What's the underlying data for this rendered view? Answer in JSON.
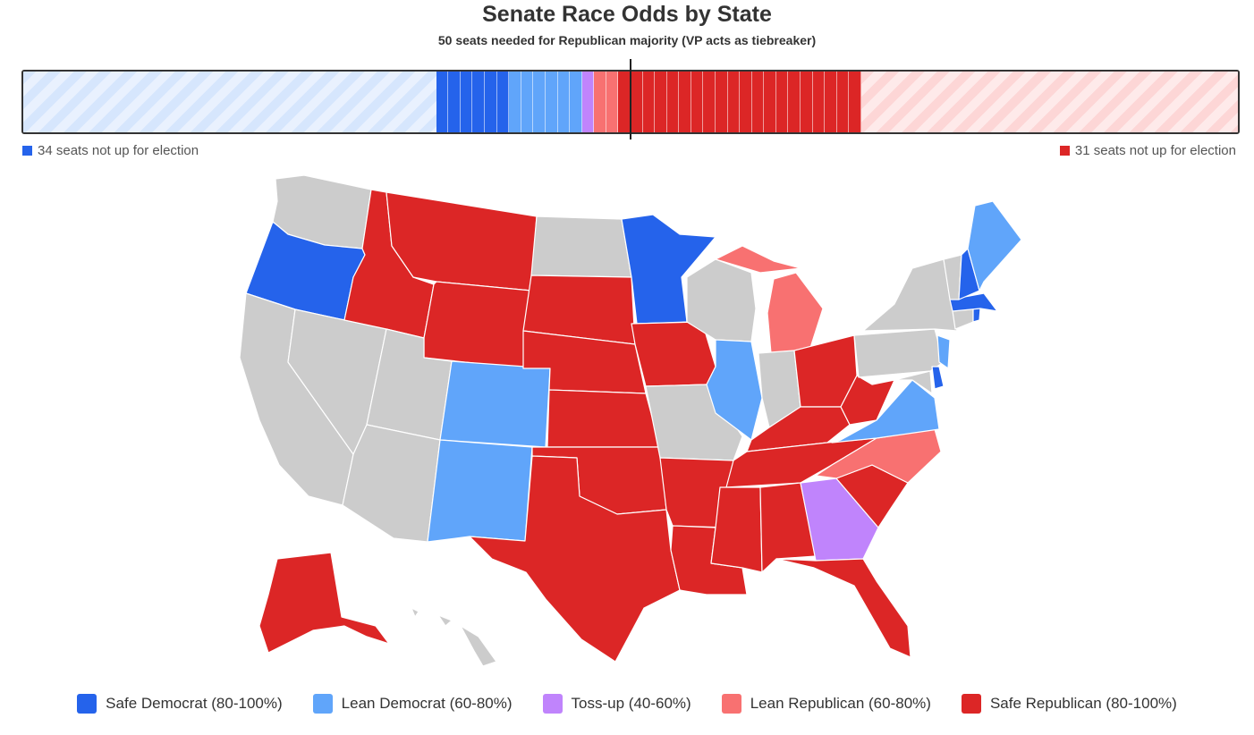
{
  "title": "Senate Race Odds by State",
  "subtitle": "50 seats needed for Republican majority (VP acts as tiebreaker)",
  "colors": {
    "safe_dem": "#2563eb",
    "lean_dem": "#60a5fa",
    "tossup": "#c084fc",
    "lean_rep": "#f87171",
    "safe_rep": "#dc2626",
    "no_race": "#cccccc"
  },
  "seat_bar": {
    "total_seats": 100,
    "majority_threshold": 50,
    "segments": [
      {
        "category": "dem_not_up",
        "seats": 34
      },
      {
        "category": "safe_dem",
        "seats": 6
      },
      {
        "category": "lean_dem",
        "seats": 6
      },
      {
        "category": "tossup",
        "seats": 1
      },
      {
        "category": "lean_rep",
        "seats": 2
      },
      {
        "category": "safe_rep",
        "seats": 20
      },
      {
        "category": "rep_not_up",
        "seats": 31
      }
    ],
    "dem_not_up_label": "34 seats not up for election",
    "rep_not_up_label": "31 seats not up for election"
  },
  "states": {
    "safe_dem": [
      "Oregon",
      "Minnesota",
      "New Hampshire",
      "Massachusetts",
      "Rhode Island",
      "Delaware"
    ],
    "lean_dem": [
      "Colorado",
      "New Mexico",
      "Illinois",
      "Virginia",
      "New Jersey",
      "Maine"
    ],
    "tossup": [
      "Georgia"
    ],
    "lean_rep": [
      "Michigan",
      "North Carolina"
    ],
    "safe_rep": [
      "Montana",
      "Idaho",
      "Wyoming",
      "South Dakota",
      "Nebraska",
      "Kansas",
      "Oklahoma",
      "Texas",
      "Iowa",
      "Arkansas",
      "Louisiana",
      "Mississippi",
      "Alabama",
      "Tennessee",
      "Kentucky",
      "West Virginia",
      "Ohio",
      "South Carolina",
      "Florida",
      "Alaska"
    ]
  },
  "legend": [
    {
      "key": "safe_dem",
      "label": "Safe Democrat (80-100%)"
    },
    {
      "key": "lean_dem",
      "label": "Lean Democrat (60-80%)"
    },
    {
      "key": "tossup",
      "label": "Toss-up (40-60%)"
    },
    {
      "key": "lean_rep",
      "label": "Lean Republican (60-80%)"
    },
    {
      "key": "safe_rep",
      "label": "Safe Republican (80-100%)"
    }
  ]
}
